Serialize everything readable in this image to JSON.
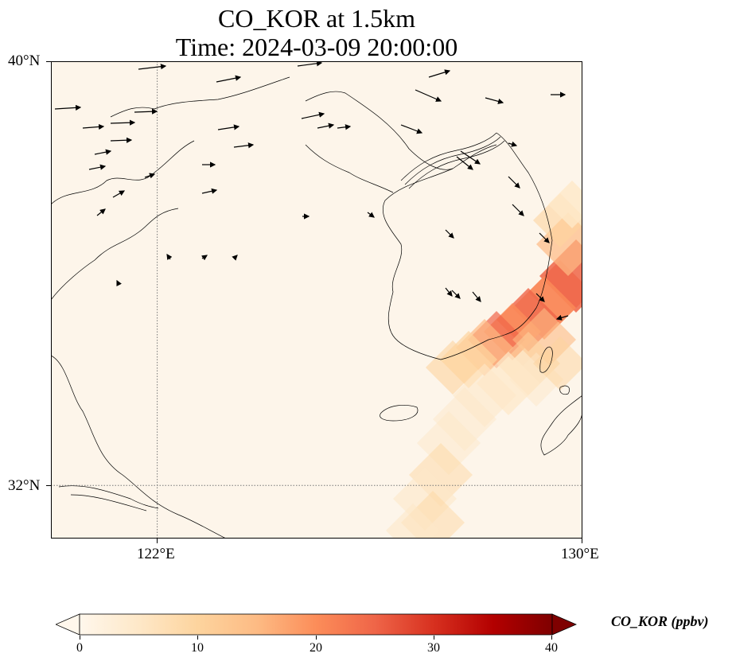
{
  "title": {
    "line1": "CO_KOR at 1.5km",
    "line2": "Time: 2024-03-09 20:00:00"
  },
  "map": {
    "projection": "PlateCarree",
    "lon_range": [
      120.4,
      130.0
    ],
    "lat_range": [
      31.0,
      40.0
    ],
    "gridlines": {
      "lon": [
        122
      ],
      "lat": [
        32
      ],
      "style": "dotted"
    },
    "lat_ticks": [
      {
        "value": 40,
        "label": "40°N"
      },
      {
        "value": 32,
        "label": "32°N"
      }
    ],
    "lon_ticks": [
      {
        "value": 122,
        "label": "122°E"
      },
      {
        "value": 130,
        "label": "130°E"
      }
    ],
    "background_color": "#fdf5ea"
  },
  "colorbar": {
    "label": "CO_KOR (ppbv)",
    "colormap": "OrRd",
    "min": 0,
    "max": 40,
    "extend": "both",
    "ticks": [
      "0",
      "10",
      "20",
      "30",
      "40"
    ],
    "colors": [
      "#fff7ec",
      "#fee8c8",
      "#fdd49e",
      "#fdbb84",
      "#fc8d59",
      "#ef6548",
      "#d7301f",
      "#b30000",
      "#7f0000"
    ]
  }
}
